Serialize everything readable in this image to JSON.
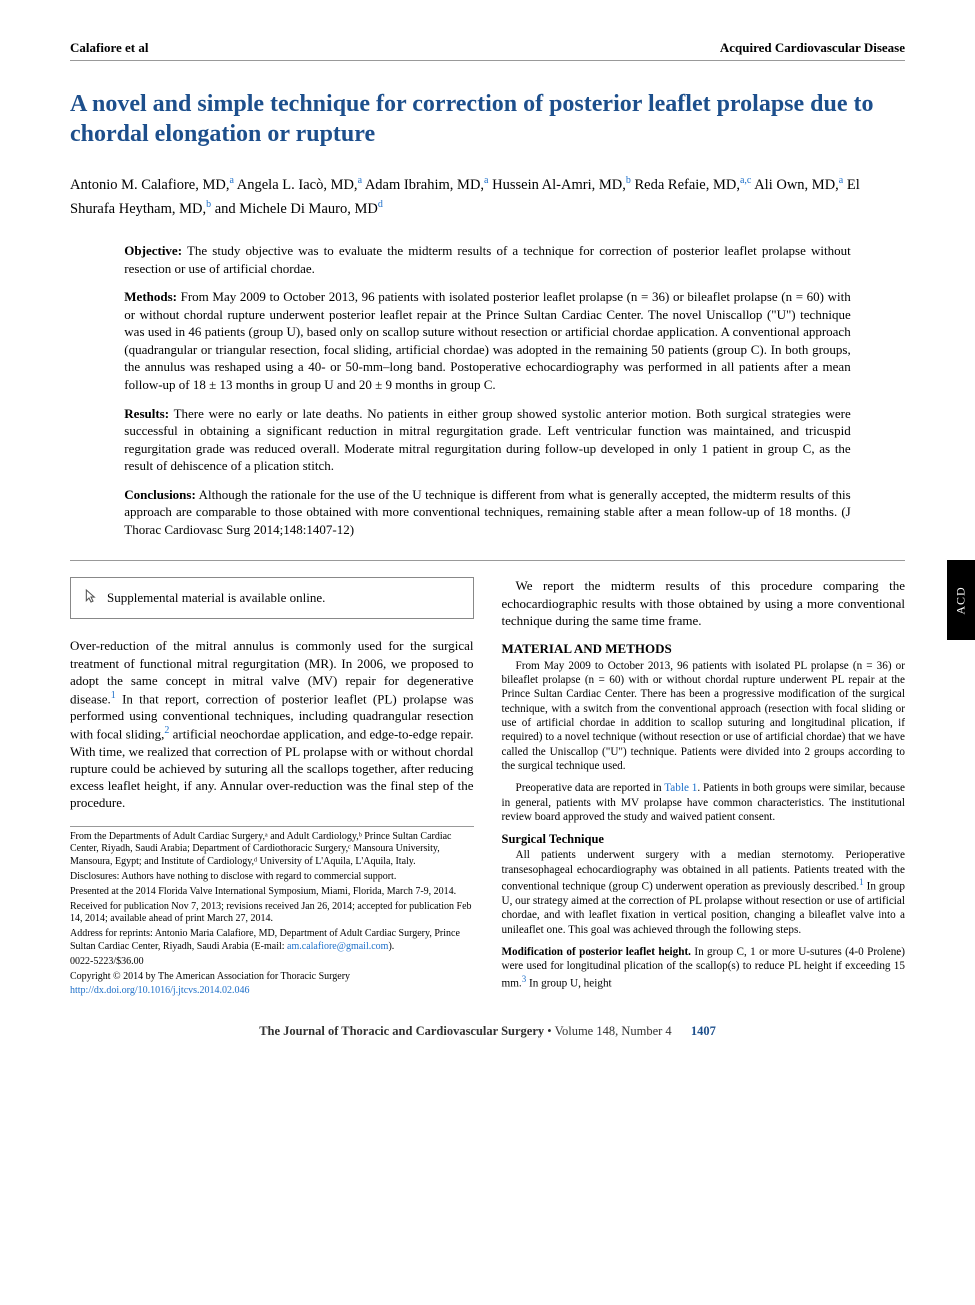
{
  "header": {
    "left": "Calafiore et al",
    "right": "Acquired Cardiovascular Disease"
  },
  "title": "A novel and simple technique for correction of posterior leaflet prolapse due to chordal elongation or rupture",
  "authors_html": "Antonio M. Calafiore, MD,|a| Angela L. Iacò, MD,|a| Adam Ibrahim, MD,|a| Hussein Al-Amri, MD,|b| Reda Refaie, MD,|a,c| Ali Own, MD,|a| El Shurafa Heytham, MD,|b| and Michele Di Mauro, MD|d|",
  "abstract": {
    "objective": {
      "label": "Objective:",
      "text": "The study objective was to evaluate the midterm results of a technique for correction of posterior leaflet prolapse without resection or use of artificial chordae."
    },
    "methods": {
      "label": "Methods:",
      "text": "From May 2009 to October 2013, 96 patients with isolated posterior leaflet prolapse (n = 36) or bileaflet prolapse (n = 60) with or without chordal rupture underwent posterior leaflet repair at the Prince Sultan Cardiac Center. The novel Uniscallop (\"U\") technique was used in 46 patients (group U), based only on scallop suture without resection or artificial chordae application. A conventional approach (quadrangular or triangular resection, focal sliding, artificial chordae) was adopted in the remaining 50 patients (group C). In both groups, the annulus was reshaped using a 40- or 50-mm–long band. Postoperative echocardiography was performed in all patients after a mean follow-up of 18 ± 13 months in group U and 20 ± 9 months in group C."
    },
    "results": {
      "label": "Results:",
      "text": "There were no early or late deaths. No patients in either group showed systolic anterior motion. Both surgical strategies were successful in obtaining a significant reduction in mitral regurgitation grade. Left ventricular function was maintained, and tricuspid regurgitation grade was reduced overall. Moderate mitral regurgitation during follow-up developed in only 1 patient in group C, as the result of dehiscence of a plication stitch."
    },
    "conclusions": {
      "label": "Conclusions:",
      "text": "Although the rationale for the use of the U technique is different from what is generally accepted, the midterm results of this approach are comparable to those obtained with more conventional techniques, remaining stable after a mean follow-up of 18 months. (J Thorac Cardiovasc Surg 2014;148:1407-12)"
    }
  },
  "supplemental": "Supplemental material is available online.",
  "left_col": {
    "p1_a": "Over-reduction of the mitral annulus is commonly used for the surgical treatment of functional mitral regurgitation (MR). In 2006, we proposed to adopt the same concept in mitral valve (MV) repair for degenerative disease.",
    "p1_b": " In that report, correction of posterior leaflet (PL) prolapse was performed using conventional techniques, including quadrangular resection with focal sliding,",
    "p1_c": " artificial neochordae application, and edge-to-edge repair. With time, we realized that correction of PL prolapse with or without chordal rupture could be achieved by suturing all the scallops together, after reducing excess leaflet height, if any. Annular over-reduction was the final step of the procedure."
  },
  "right_col": {
    "p1": "We report the midterm results of this procedure comparing the echocardiographic results with those obtained by using a more conventional technique during the same time frame.",
    "mm_head": "MATERIAL AND METHODS",
    "mm_p1_a": "From May 2009 to October 2013, 96 patients with isolated PL prolapse (n = 36) or bileaflet prolapse (n = 60) with or without chordal rupture underwent PL repair at the Prince Sultan Cardiac Center. There has been a progressive modification of the surgical technique, with a switch from the conventional approach (resection with focal sliding or use of artificial chordae in addition to scallop suturing and longitudinal plication, if required) to a novel technique (without resection or use of artificial chordae) that we have called the Uniscallop (\"U\") technique. Patients were divided into 2 groups according to the surgical technique used.",
    "mm_p2_a": "Preoperative data are reported in ",
    "mm_p2_link": "Table 1",
    "mm_p2_b": ". Patients in both groups were similar, because in general, patients with MV prolapse have common characteristics. The institutional review board approved the study and waived patient consent.",
    "st_head": "Surgical Technique",
    "st_p1_a": "All patients underwent surgery with a median sternotomy. Perioperative transesophageal echocardiography was obtained in all patients. Patients treated with the conventional technique (group C) underwent operation as previously described.",
    "st_p1_b": " In group U, our strategy aimed at the correction of PL prolapse without resection or use of artificial chordae, and with leaflet fixation in vertical position, changing a bileaflet valve into a unileaflet one. This goal was achieved through the following steps.",
    "mp_head": "Modification of posterior leaflet height.",
    "mp_a": " In group C, 1 or more U-sutures (4-0 Prolene) were used for longitudinal plication of the scallop(s) to reduce PL height if exceeding 15 mm.",
    "mp_b": " In group U, height"
  },
  "footnotes": {
    "f1": "From the Departments of Adult Cardiac Surgery,ᵃ and Adult Cardiology,ᵇ Prince Sultan Cardiac Center, Riyadh, Saudi Arabia; Department of Cardiothoracic Surgery,ᶜ Mansoura University, Mansoura, Egypt; and Institute of Cardiology,ᵈ University of L'Aquila, L'Aquila, Italy.",
    "f2": "Disclosures: Authors have nothing to disclose with regard to commercial support.",
    "f3": "Presented at the 2014 Florida Valve International Symposium, Miami, Florida, March 7-9, 2014.",
    "f4": "Received for publication Nov 7, 2013; revisions received Jan 26, 2014; accepted for publication Feb 14, 2014; available ahead of print March 27, 2014.",
    "f5_a": "Address for reprints: Antonio Maria Calafiore, MD, Department of Adult Cardiac Surgery, Prince Sultan Cardiac Center, Riyadh, Saudi Arabia (E-mail: ",
    "f5_email": "am.calafiore@gmail.com",
    "f5_b": ").",
    "f6": "0022-5223/$36.00",
    "f7": "Copyright © 2014 by The American Association for Thoracic Surgery",
    "doi": "http://dx.doi.org/10.1016/j.jtcvs.2014.02.046"
  },
  "footer": {
    "journal": "The Journal of Thoracic and Cardiovascular Surgery",
    "issue": "Volume 148, Number 4",
    "page": "1407"
  },
  "side_tab": "ACD",
  "refs": {
    "r1": "1",
    "r2": "2",
    "r3": "3"
  },
  "colors": {
    "title": "#1d4f8c",
    "link": "#1d6fc9",
    "rule": "#999999",
    "tab_bg": "#000000",
    "tab_fg": "#ffffff",
    "body": "#000000"
  }
}
